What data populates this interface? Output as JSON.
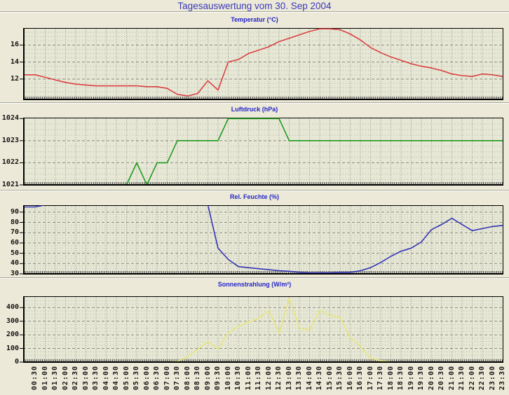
{
  "header": {
    "title": "Tagesauswertung vom 30. Sep 2004"
  },
  "style": {
    "page_bg": "#ece9d8",
    "plot_bg": "#e7e7d6",
    "frame_color": "#000000",
    "grid_color": "#9a9a8e",
    "title_color": "#3a3ab8",
    "chart_title_color": "#2424c8",
    "tick_label_color": "#151515"
  },
  "x_axis": {
    "labels": [
      "00:30",
      "01:00",
      "01:30",
      "02:00",
      "02:30",
      "03:00",
      "03:30",
      "04:00",
      "04:30",
      "05:00",
      "05:30",
      "06:00",
      "06:30",
      "07:00",
      "07:30",
      "08:00",
      "08:30",
      "09:00",
      "09:30",
      "10:00",
      "10:30",
      "11:00",
      "11:30",
      "12:00",
      "12:30",
      "13:00",
      "13:30",
      "14:00",
      "14:30",
      "15:00",
      "15:30",
      "16:00",
      "16:30",
      "17:00",
      "17:30",
      "18:00",
      "18:30",
      "19:00",
      "19:30",
      "20:00",
      "20:30",
      "21:00",
      "21:30",
      "22:00",
      "22:30",
      "23:00",
      "23:30"
    ]
  },
  "chart_data": [
    {
      "type": "line",
      "title": "Temperatur (°C)",
      "color": "#d94141",
      "ylim": [
        9.6,
        18
      ],
      "ytick_values": [
        12,
        14,
        16
      ],
      "ytick_labels": [
        "12",
        "14",
        "16"
      ],
      "yminor": 0.5,
      "values": [
        12.5,
        12.2,
        11.9,
        11.6,
        11.4,
        11.3,
        11.2,
        11.2,
        11.2,
        11.2,
        11.2,
        11.1,
        11.1,
        10.9,
        10.2,
        10.0,
        10.3,
        11.8,
        10.7,
        14.0,
        14.3,
        15.0,
        15.4,
        15.8,
        16.4,
        16.8,
        17.2,
        17.6,
        17.9,
        17.9,
        17.8,
        17.3,
        16.6,
        15.7,
        15.1,
        14.6,
        14.2,
        13.8,
        13.5,
        13.3,
        13.0,
        12.6,
        12.4,
        12.3,
        12.6,
        12.5,
        12.3
      ]
    },
    {
      "type": "line",
      "title": "Luftdruck (hPa)",
      "color": "#1f9a1f",
      "ylim": [
        1021,
        1024.04
      ],
      "ytick_values": [
        1021,
        1022,
        1023,
        1024
      ],
      "ytick_labels": [
        "1021",
        "1022",
        "1023",
        "1024"
      ],
      "yminor": 0.25,
      "values": [
        1021,
        1021,
        1021,
        1021,
        1021,
        1021,
        1021,
        1021,
        1021,
        1021,
        1022,
        1021,
        1022,
        1022,
        1023,
        1023,
        1023,
        1023,
        1023,
        1024,
        1024,
        1024,
        1024,
        1024,
        1024,
        1023,
        1023,
        1023,
        1023,
        1023,
        1023,
        1023,
        1023,
        1023,
        1023,
        1023,
        1023,
        1023,
        1023,
        1023,
        1023,
        1023,
        1023,
        1023,
        1023,
        1023,
        1023
      ]
    },
    {
      "type": "line",
      "title": "Rel. Feuchte (%)",
      "color": "#3333b4",
      "ylim": [
        30,
        96.7
      ],
      "ytick_values": [
        30,
        40,
        50,
        60,
        70,
        80,
        90
      ],
      "ytick_labels": [
        "30",
        "40",
        "50",
        "60",
        "70",
        "80",
        "90"
      ],
      "yminor": 2.5,
      "values": [
        95,
        97,
        97,
        97,
        97,
        97,
        97,
        97,
        97,
        97,
        97,
        97,
        97,
        97,
        97,
        97,
        97,
        97,
        55,
        44,
        37,
        36,
        35,
        34,
        33,
        32.5,
        31.5,
        31,
        31,
        31,
        31.5,
        31.5,
        33,
        36,
        41,
        47,
        52,
        55,
        61,
        73,
        78,
        84,
        78,
        72,
        74,
        76,
        77
      ]
    },
    {
      "type": "line",
      "title": "Sonnenstrahlung (W/m²)",
      "color": "#e6e67e",
      "ylim": [
        0,
        483
      ],
      "ytick_values": [
        0,
        100,
        200,
        300,
        400
      ],
      "ytick_labels": [
        "0",
        "100",
        "200",
        "300",
        "400"
      ],
      "yminor": 25,
      "values": [
        0,
        0,
        0,
        0,
        0,
        0,
        0,
        0,
        0,
        0,
        0,
        0,
        0,
        0,
        5,
        40,
        95,
        150,
        95,
        215,
        260,
        295,
        320,
        380,
        210,
        470,
        250,
        235,
        380,
        340,
        330,
        180,
        115,
        30,
        10,
        2,
        0,
        0,
        0,
        0,
        0,
        0,
        0,
        0,
        0,
        0,
        0
      ]
    }
  ]
}
